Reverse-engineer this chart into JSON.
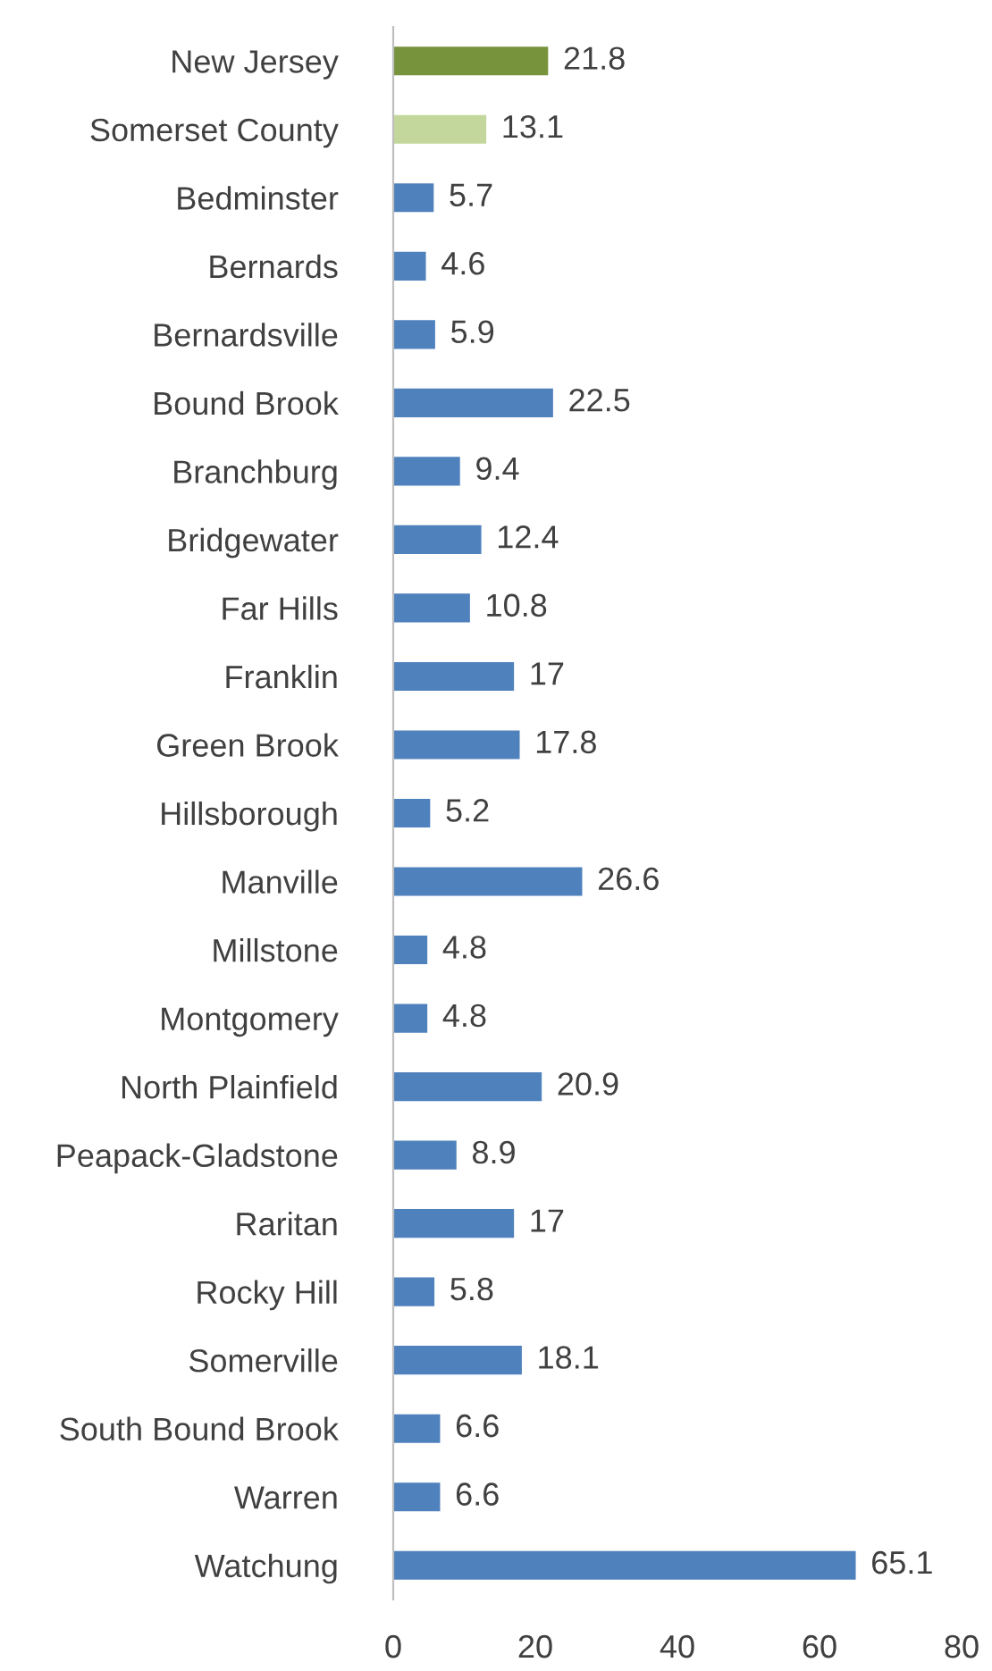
{
  "chart_data": {
    "type": "bar",
    "orientation": "horizontal",
    "categories": [
      "New Jersey",
      "Somerset County",
      "Bedminster",
      "Bernards",
      "Bernardsville",
      "Bound Brook",
      "Branchburg",
      "Bridgewater",
      "Far Hills",
      "Franklin",
      "Green Brook",
      "Hillsborough",
      "Manville",
      "Millstone",
      "Montgomery",
      "North Plainfield",
      "Peapack-Gladstone",
      "Raritan",
      "Rocky Hill",
      "Somerville",
      "South Bound Brook",
      "Warren",
      "Watchung"
    ],
    "values": [
      21.8,
      13.1,
      5.7,
      4.6,
      5.9,
      22.5,
      9.4,
      12.4,
      10.8,
      17,
      17.8,
      5.2,
      26.6,
      4.8,
      4.8,
      20.9,
      8.9,
      17,
      5.8,
      18.1,
      6.6,
      6.6,
      65.1
    ],
    "colors": [
      "#77933c",
      "#c3d69b",
      "#4f81bd",
      "#4f81bd",
      "#4f81bd",
      "#4f81bd",
      "#4f81bd",
      "#4f81bd",
      "#4f81bd",
      "#4f81bd",
      "#4f81bd",
      "#4f81bd",
      "#4f81bd",
      "#4f81bd",
      "#4f81bd",
      "#4f81bd",
      "#4f81bd",
      "#4f81bd",
      "#4f81bd",
      "#4f81bd",
      "#4f81bd",
      "#4f81bd",
      "#4f81bd"
    ],
    "xlim": [
      0,
      80
    ],
    "xticks": [
      0,
      20,
      40,
      60,
      80
    ],
    "grid": false,
    "legend": false,
    "data_labels": true
  }
}
